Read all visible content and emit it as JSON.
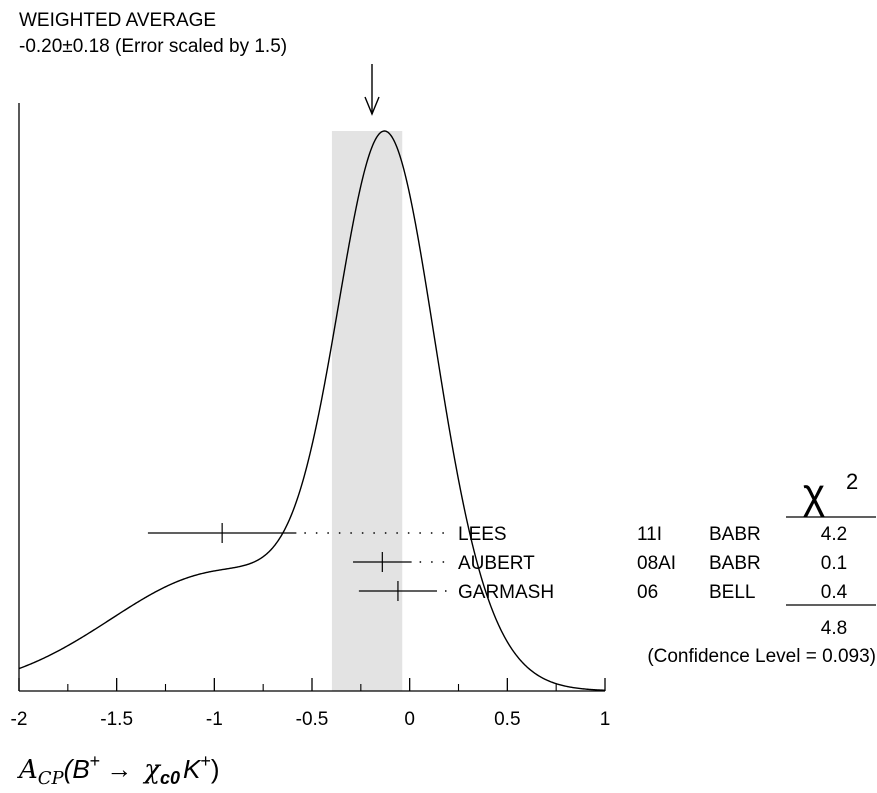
{
  "chart_data": {
    "type": "ideogram",
    "title": "WEIGHTED AVERAGE",
    "subtitle": "-0.20±0.18 (Error scaled by 1.5)",
    "average": {
      "value": -0.2,
      "error": 0.18
    },
    "xlim": [
      -2,
      1
    ],
    "x_ticks": [
      "-2",
      "-1.5",
      "-1",
      "-0.5",
      "0",
      "0.5",
      "1"
    ],
    "x_tick_values": [
      -2,
      -1.5,
      -1,
      -0.5,
      0,
      0.5,
      1
    ],
    "xlabel": {
      "lead": "A",
      "sub": "CP",
      "open": "(B",
      "sup": "+",
      "arrow": "→",
      "chi": "χ",
      "chisub": "c0",
      "k": "K",
      "ksup": "+",
      "close": ")"
    },
    "chi2_header": {
      "symbol": "χ",
      "exp": "2"
    },
    "measurements": [
      {
        "author": "LEES",
        "year": "11I",
        "experiment": "BABR",
        "chi2": "4.2",
        "value": -0.96,
        "error": 0.38
      },
      {
        "author": "AUBERT",
        "year": "08AI",
        "experiment": "BABR",
        "chi2": "0.1",
        "value": -0.14,
        "error": 0.15
      },
      {
        "author": "GARMASH",
        "year": "06",
        "experiment": "BELL",
        "chi2": "0.4",
        "value": -0.06,
        "error": 0.2
      }
    ],
    "chi2_total": "4.8",
    "confidence_level": "(Confidence Level = 0.093)",
    "colors": {
      "band": "#e3e3e3",
      "line": "#000000"
    }
  }
}
